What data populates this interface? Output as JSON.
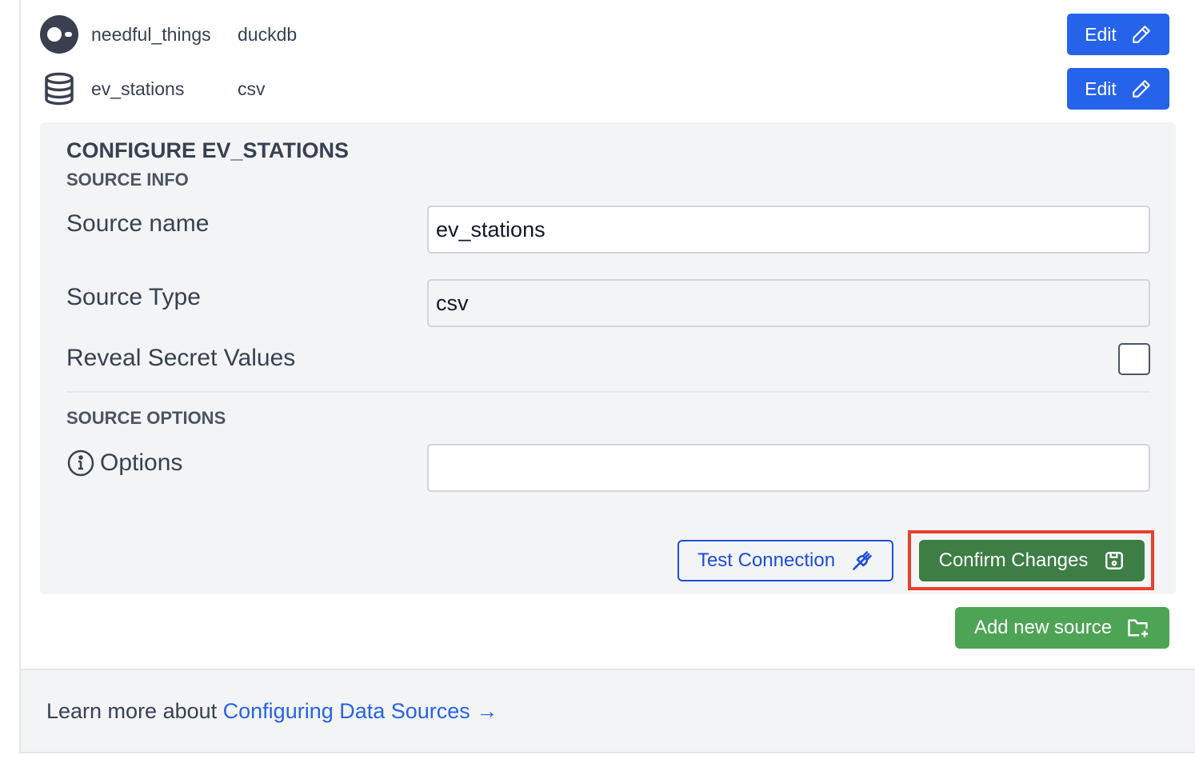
{
  "sources": [
    {
      "name": "needful_things",
      "type": "duckdb",
      "icon": "duckdb-logo-icon",
      "edit_label": "Edit"
    },
    {
      "name": "ev_stations",
      "type": "csv",
      "icon": "database-icon",
      "edit_label": "Edit"
    }
  ],
  "config": {
    "title": "CONFIGURE EV_STATIONS",
    "source_info_heading": "SOURCE INFO",
    "source_name_label": "Source name",
    "source_name_value": "ev_stations",
    "source_type_label": "Source Type",
    "source_type_value": "csv",
    "reveal_label": "Reveal Secret Values",
    "reveal_checked": false,
    "source_options_heading": "SOURCE OPTIONS",
    "options_label": "Options",
    "options_value": "",
    "test_label": "Test Connection",
    "confirm_label": "Confirm Changes"
  },
  "add_source_label": "Add new source",
  "footer": {
    "prefix": "Learn more about ",
    "link": "Configuring Data Sources",
    "arrow": "→"
  },
  "colors": {
    "primary": "#2563eb",
    "confirm": "#3d7e45",
    "add": "#4ea455",
    "highlight": "#e8412b"
  }
}
